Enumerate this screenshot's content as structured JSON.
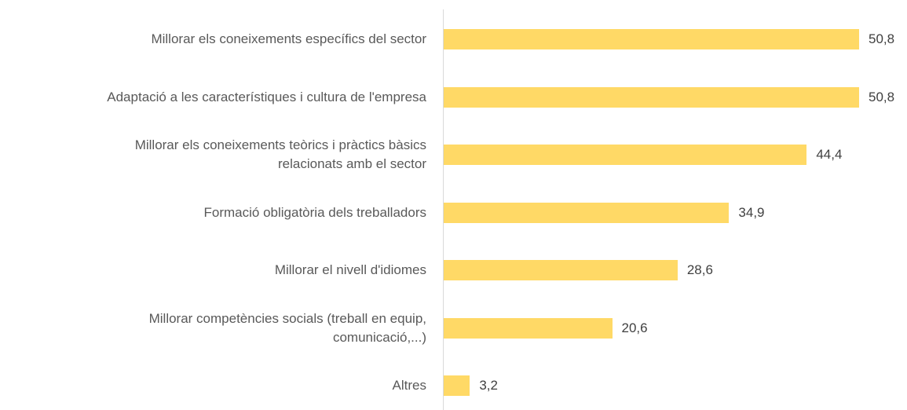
{
  "chart_data": {
    "type": "bar",
    "orientation": "horizontal",
    "categories": [
      "Millorar els coneixements específics del sector",
      "Adaptació a les característiques i cultura de l'empresa",
      "Millorar els coneixements teòrics i pràctics bàsics\nrelacionats amb el sector",
      "Formació obligatòria dels treballadors",
      "Millorar el nivell d'idiomes",
      "Millorar competències socials (treball en equip,\ncomunicació,...)",
      "Altres"
    ],
    "values": [
      50.8,
      50.8,
      44.4,
      34.9,
      28.6,
      20.6,
      3.2
    ],
    "value_labels": [
      "50,8",
      "50,8",
      "44,4",
      "34,9",
      "28,6",
      "20,6",
      "3,2"
    ],
    "color": "#ffd966"
  }
}
